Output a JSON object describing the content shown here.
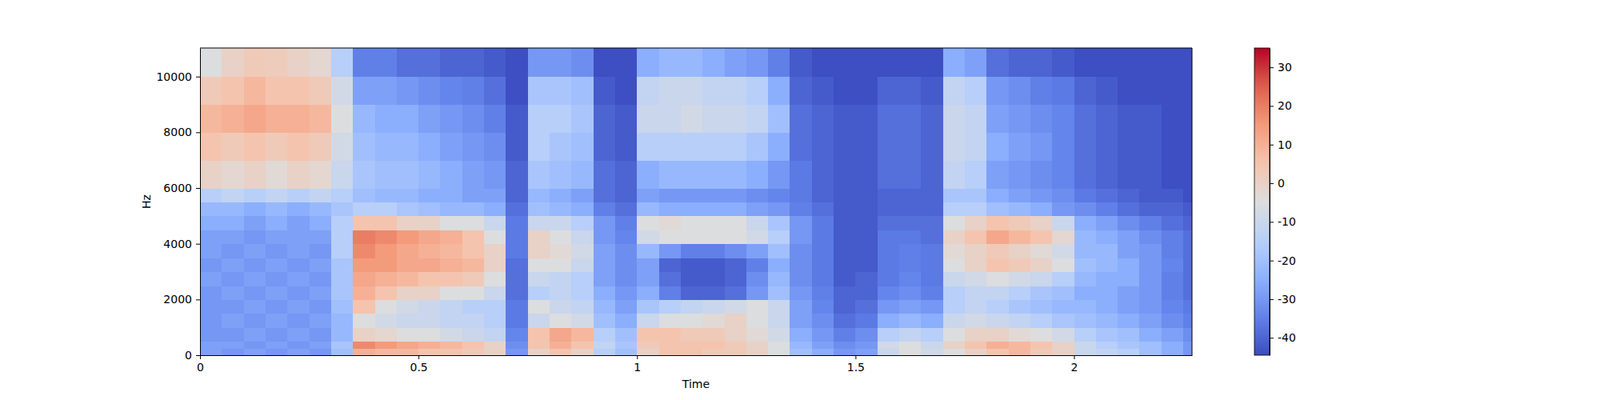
{
  "chart_data": {
    "type": "heatmap",
    "x_label": "Time",
    "y_label": "Hz",
    "xlim": [
      0,
      2.27
    ],
    "ylim": [
      0,
      11025
    ],
    "xticks": [
      0,
      0.5,
      1,
      1.5,
      2
    ],
    "yticks": [
      0,
      2000,
      4000,
      6000,
      8000,
      10000
    ],
    "x_bins": [
      0,
      0.05,
      0.1,
      0.15,
      0.2,
      0.25,
      0.3,
      0.35,
      0.4,
      0.45,
      0.5,
      0.55,
      0.6,
      0.65,
      0.7,
      0.75,
      0.8,
      0.85,
      0.9,
      0.95,
      1,
      1.05,
      1.1,
      1.15,
      1.2,
      1.25,
      1.3,
      1.35,
      1.4,
      1.45,
      1.5,
      1.55,
      1.6,
      1.65,
      1.7,
      1.75,
      1.8,
      1.85,
      1.9,
      1.95,
      2,
      2.05,
      2.1,
      2.15,
      2.2,
      2.25,
      2.27
    ],
    "y_bins": [
      0,
      250,
      500,
      1000,
      1500,
      2000,
      2500,
      3000,
      3500,
      4000,
      4500,
      5000,
      5500,
      6000,
      7000,
      8000,
      9000,
      10000,
      11025
    ],
    "cells": [
      [
        -28,
        -30,
        -28,
        -30,
        -28,
        -30,
        -20,
        10,
        8,
        8,
        5,
        5,
        3,
        0,
        -30,
        0,
        5,
        0,
        -15,
        -20,
        0,
        5,
        5,
        3,
        3,
        0,
        -5,
        -20,
        -25,
        -30,
        -28,
        -10,
        -5,
        -8,
        -5,
        0,
        5,
        8,
        3,
        0,
        -10,
        -12,
        -15,
        -20,
        -25,
        -30
      ],
      [
        -28,
        -28,
        -30,
        -28,
        -30,
        -28,
        -18,
        18,
        15,
        12,
        10,
        8,
        5,
        0,
        -32,
        5,
        10,
        5,
        -12,
        -18,
        3,
        5,
        5,
        5,
        3,
        0,
        -5,
        -22,
        -28,
        -32,
        -30,
        -8,
        -5,
        -10,
        0,
        5,
        10,
        8,
        5,
        0,
        -10,
        -15,
        -18,
        -20,
        -25,
        -30
      ],
      [
        -30,
        -30,
        -28,
        -30,
        -28,
        -30,
        -22,
        0,
        -2,
        -5,
        -5,
        -8,
        -10,
        -12,
        -34,
        5,
        12,
        8,
        -15,
        -20,
        5,
        5,
        3,
        3,
        0,
        -3,
        -8,
        -25,
        -30,
        -35,
        -32,
        -15,
        -12,
        -15,
        -5,
        0,
        0,
        -3,
        -5,
        -8,
        -15,
        -18,
        -20,
        -25,
        -28,
        -32
      ],
      [
        -30,
        -28,
        -30,
        -28,
        -30,
        -28,
        -22,
        -5,
        -8,
        -10,
        -10,
        -12,
        -12,
        -15,
        -36,
        -10,
        -5,
        -8,
        -20,
        -25,
        -10,
        -5,
        -5,
        -3,
        0,
        -5,
        -10,
        -28,
        -32,
        -38,
        -36,
        -25,
        -22,
        -25,
        -10,
        -8,
        -10,
        -12,
        -15,
        -18,
        -20,
        -22,
        -25,
        -28,
        -32,
        -35
      ],
      [
        -30,
        -30,
        -28,
        -30,
        -28,
        -30,
        -20,
        5,
        -5,
        -8,
        -10,
        -12,
        -15,
        -15,
        -36,
        -5,
        -10,
        -12,
        -22,
        -28,
        -18,
        -15,
        -12,
        -10,
        -8,
        -5,
        -10,
        -28,
        -34,
        -40,
        -38,
        -30,
        -28,
        -30,
        -15,
        -12,
        -15,
        -18,
        -20,
        -22,
        -22,
        -25,
        -28,
        -30,
        -34,
        -36
      ],
      [
        -30,
        -28,
        -30,
        -28,
        -30,
        -28,
        -18,
        10,
        5,
        0,
        0,
        -5,
        -5,
        -10,
        -38,
        -15,
        -12,
        -15,
        -25,
        -30,
        -25,
        -35,
        -40,
        -40,
        -38,
        -30,
        -20,
        -30,
        -35,
        -40,
        -40,
        -34,
        -32,
        -35,
        -15,
        -12,
        -12,
        -15,
        -18,
        -20,
        -25,
        -25,
        -28,
        -30,
        -35,
        -38
      ],
      [
        -28,
        -30,
        -28,
        -30,
        -28,
        -30,
        -18,
        12,
        10,
        8,
        5,
        5,
        3,
        -5,
        -38,
        -10,
        -12,
        -15,
        -28,
        -32,
        -28,
        -38,
        -42,
        -42,
        -40,
        -32,
        -22,
        -32,
        -36,
        -42,
        -40,
        -36,
        -34,
        -36,
        -10,
        -8,
        -5,
        -8,
        -10,
        -15,
        -22,
        -25,
        -25,
        -30,
        -35,
        -38
      ],
      [
        -30,
        -28,
        -30,
        -28,
        -30,
        -28,
        -18,
        15,
        15,
        12,
        12,
        10,
        8,
        0,
        -38,
        -5,
        -5,
        -10,
        -28,
        -32,
        -28,
        -40,
        -42,
        -42,
        -40,
        -35,
        -25,
        -32,
        -36,
        -42,
        -42,
        -36,
        -35,
        -36,
        -5,
        0,
        5,
        3,
        0,
        -5,
        -20,
        -22,
        -25,
        -30,
        -34,
        -38
      ],
      [
        -28,
        -30,
        -28,
        -30,
        -28,
        -30,
        -15,
        18,
        15,
        12,
        10,
        8,
        5,
        0,
        -36,
        0,
        -3,
        -8,
        -28,
        -32,
        -22,
        -30,
        -35,
        -35,
        -32,
        -28,
        -20,
        -32,
        -36,
        -42,
        -42,
        -36,
        -35,
        -36,
        -3,
        0,
        3,
        0,
        -3,
        -8,
        -22,
        -22,
        -28,
        -30,
        -35,
        -38
      ],
      [
        -28,
        -28,
        -30,
        -28,
        -28,
        -28,
        -15,
        20,
        18,
        15,
        12,
        10,
        5,
        -5,
        -36,
        0,
        -5,
        -10,
        -30,
        -34,
        -8,
        -5,
        -5,
        -5,
        -5,
        -8,
        -15,
        -30,
        -36,
        -42,
        -42,
        -36,
        -36,
        -38,
        0,
        5,
        12,
        8,
        5,
        -2,
        -22,
        -25,
        -28,
        -32,
        -35,
        -38
      ],
      [
        -25,
        -25,
        -28,
        -25,
        -28,
        -25,
        -15,
        5,
        5,
        0,
        0,
        -5,
        -5,
        -10,
        -36,
        -10,
        -10,
        -15,
        -30,
        -35,
        -5,
        -3,
        -5,
        -5,
        -5,
        -10,
        -18,
        -30,
        -36,
        -42,
        -42,
        -38,
        -38,
        -38,
        -5,
        0,
        5,
        3,
        0,
        -10,
        -25,
        -28,
        -32,
        -35,
        -38,
        -40
      ],
      [
        -22,
        -22,
        -25,
        -22,
        -25,
        -22,
        -18,
        -15,
        -15,
        -18,
        -20,
        -22,
        -22,
        -25,
        -38,
        -20,
        -22,
        -25,
        -35,
        -38,
        -22,
        -25,
        -25,
        -25,
        -25,
        -28,
        -30,
        -35,
        -38,
        -42,
        -42,
        -40,
        -40,
        -40,
        -15,
        -15,
        -20,
        -22,
        -25,
        -30,
        -32,
        -35,
        -38,
        -40,
        -40,
        -42
      ],
      [
        -15,
        -12,
        -15,
        -12,
        -15,
        -12,
        -15,
        -20,
        -22,
        -22,
        -25,
        -25,
        -28,
        -28,
        -40,
        -22,
        -25,
        -28,
        -38,
        -40,
        -28,
        -30,
        -30,
        -30,
        -30,
        -32,
        -34,
        -36,
        -40,
        -42,
        -42,
        -40,
        -40,
        -40,
        -18,
        -18,
        -25,
        -28,
        -30,
        -32,
        -36,
        -38,
        -40,
        -42,
        -42,
        -44
      ],
      [
        0,
        -2,
        0,
        -3,
        0,
        -2,
        -10,
        -18,
        -20,
        -20,
        -22,
        -25,
        -28,
        -30,
        -40,
        -18,
        -20,
        -22,
        -38,
        -40,
        -25,
        -22,
        -22,
        -22,
        -22,
        -25,
        -30,
        -36,
        -40,
        -42,
        -42,
        -38,
        -38,
        -40,
        -12,
        -15,
        -28,
        -30,
        -32,
        -34,
        -38,
        -40,
        -42,
        -42,
        -44,
        -44
      ],
      [
        5,
        3,
        5,
        3,
        5,
        3,
        -8,
        -20,
        -22,
        -22,
        -25,
        -28,
        -30,
        -32,
        -42,
        -15,
        -18,
        -20,
        -40,
        -42,
        -15,
        -15,
        -15,
        -15,
        -15,
        -18,
        -25,
        -38,
        -40,
        -42,
        -42,
        -38,
        -38,
        -40,
        -10,
        -12,
        -25,
        -28,
        -30,
        -34,
        -38,
        -40,
        -42,
        -42,
        -44,
        -44
      ],
      [
        8,
        10,
        12,
        10,
        10,
        8,
        -5,
        -22,
        -25,
        -25,
        -28,
        -30,
        -32,
        -35,
        -42,
        -15,
        -15,
        -18,
        -40,
        -42,
        -10,
        -10,
        -8,
        -10,
        -10,
        -12,
        -20,
        -38,
        -40,
        -42,
        -42,
        -38,
        -38,
        -40,
        -10,
        -12,
        -28,
        -30,
        -32,
        -34,
        -38,
        -40,
        -42,
        -42,
        -44,
        -44
      ],
      [
        3,
        5,
        8,
        5,
        5,
        3,
        -8,
        -28,
        -28,
        -30,
        -32,
        -34,
        -35,
        -38,
        -44,
        -18,
        -18,
        -20,
        -42,
        -44,
        -12,
        -10,
        -10,
        -12,
        -12,
        -15,
        -25,
        -40,
        -42,
        -44,
        -44,
        -40,
        -40,
        -42,
        -12,
        -15,
        -30,
        -32,
        -35,
        -36,
        -40,
        -42,
        -44,
        -44,
        -44,
        -44
      ],
      [
        -5,
        0,
        3,
        2,
        0,
        -2,
        -15,
        -35,
        -35,
        -38,
        -38,
        -40,
        -40,
        -42,
        -44,
        -30,
        -30,
        -32,
        -44,
        -44,
        -25,
        -22,
        -22,
        -25,
        -28,
        -30,
        -35,
        -42,
        -44,
        -44,
        -44,
        -44,
        -44,
        -44,
        -25,
        -28,
        -38,
        -40,
        -40,
        -42,
        -44,
        -44,
        -44,
        -44,
        -44,
        -44
      ]
    ],
    "colorbar": {
      "lim": [
        -44.5,
        35
      ],
      "ticks": [
        -40,
        -30,
        -20,
        -10,
        0,
        10,
        20,
        30
      ]
    }
  }
}
